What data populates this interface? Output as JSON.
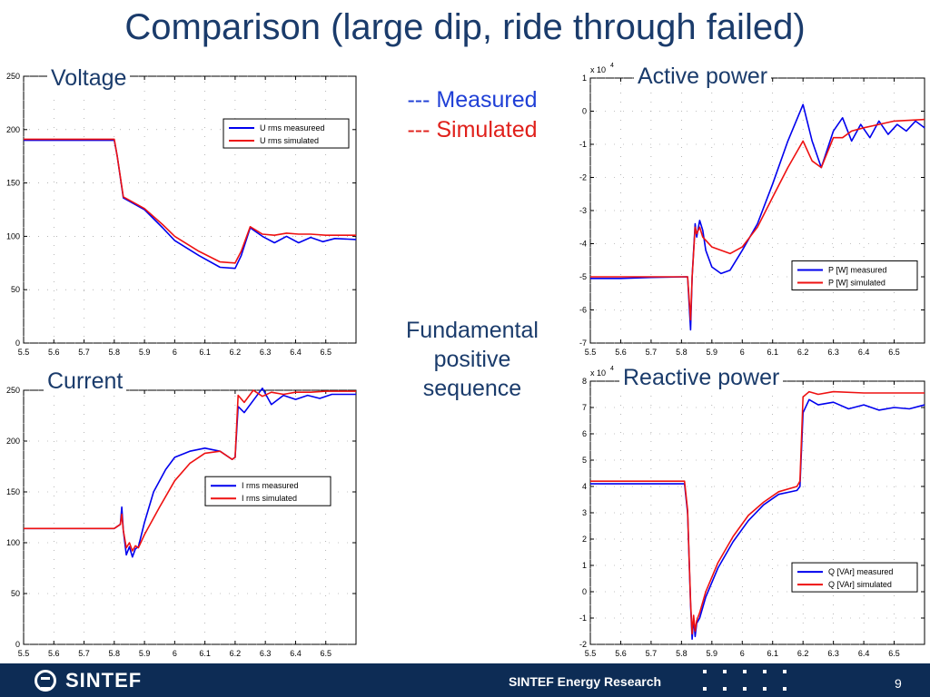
{
  "title": "Comparison (large dip, ride through failed)",
  "legend_text": {
    "measured": "--- Measured",
    "simulated": "--- Simulated"
  },
  "middle_label": [
    "Fundamental",
    "positive",
    "sequence"
  ],
  "footer": {
    "org": "SINTEF",
    "text": "SINTEF Energy Research",
    "page": "9"
  },
  "colors": {
    "measured": "#0000ee",
    "simulated": "#ee1111",
    "title": "#1a3b6b",
    "footer_bg": "#0d2c55"
  },
  "chart_data": [
    {
      "id": "voltage",
      "type": "line",
      "title": "Voltage",
      "xlim": [
        5.5,
        6.6
      ],
      "ylim": [
        0,
        250
      ],
      "xticks": [
        "5.5",
        "5.6",
        "5.7",
        "5.8",
        "5.9",
        "6",
        "6.1",
        "6.2",
        "6.3",
        "6.4",
        "6.5"
      ],
      "yticks": [
        "0",
        "50",
        "100",
        "150",
        "200",
        "250"
      ],
      "exponent": "",
      "legend_position": "top-right",
      "series": [
        {
          "name": "U rms measureed",
          "color": "measured",
          "x": [
            5.5,
            5.6,
            5.7,
            5.8,
            5.81,
            5.83,
            5.9,
            5.96,
            6.0,
            6.08,
            6.15,
            6.2,
            6.22,
            6.25,
            6.29,
            6.33,
            6.37,
            6.41,
            6.45,
            6.49,
            6.53,
            6.6
          ],
          "y": [
            190,
            190,
            190,
            190,
            175,
            136,
            125,
            108,
            96,
            82,
            71,
            70,
            82,
            108,
            100,
            94,
            100,
            94,
            99,
            95,
            98,
            97
          ]
        },
        {
          "name": "U rms simulated",
          "color": "simulated",
          "x": [
            5.5,
            5.6,
            5.7,
            5.8,
            5.81,
            5.83,
            5.9,
            5.96,
            6.0,
            6.08,
            6.15,
            6.2,
            6.22,
            6.25,
            6.29,
            6.33,
            6.37,
            6.41,
            6.45,
            6.5,
            6.6
          ],
          "y": [
            191,
            191,
            191,
            191,
            175,
            137,
            126,
            111,
            100,
            86,
            76,
            75,
            86,
            109,
            102,
            101,
            103,
            102,
            102,
            101,
            101
          ]
        }
      ]
    },
    {
      "id": "active",
      "type": "line",
      "title": "Active power",
      "xlim": [
        5.5,
        6.6
      ],
      "ylim": [
        -7,
        1
      ],
      "xticks": [
        "5.5",
        "5.6",
        "5.7",
        "5.8",
        "5.9",
        "6",
        "6.1",
        "6.2",
        "6.3",
        "6.4",
        "6.5"
      ],
      "yticks": [
        "-7",
        "-6",
        "-5",
        "-4",
        "-3",
        "-2",
        "-1",
        "0",
        "1"
      ],
      "exponent": "x 10",
      "exponent_power": "4",
      "legend_position": "bottom-right",
      "series": [
        {
          "name": "P [W] measured",
          "color": "measured",
          "x": [
            5.5,
            5.6,
            5.7,
            5.82,
            5.83,
            5.835,
            5.845,
            5.85,
            5.86,
            5.87,
            5.88,
            5.9,
            5.93,
            5.96,
            6.0,
            6.05,
            6.1,
            6.15,
            6.2,
            6.23,
            6.26,
            6.3,
            6.33,
            6.36,
            6.39,
            6.42,
            6.45,
            6.48,
            6.51,
            6.54,
            6.57,
            6.6
          ],
          "y": [
            -5.05,
            -5.05,
            -5.02,
            -5.0,
            -6.6,
            -5.0,
            -3.4,
            -3.8,
            -3.3,
            -3.6,
            -4.2,
            -4.7,
            -4.9,
            -4.8,
            -4.2,
            -3.4,
            -2.2,
            -0.9,
            0.2,
            -0.9,
            -1.7,
            -0.6,
            -0.2,
            -0.9,
            -0.4,
            -0.8,
            -0.3,
            -0.7,
            -0.4,
            -0.6,
            -0.3,
            -0.5
          ]
        },
        {
          "name": "P [W] simulated",
          "color": "simulated",
          "x": [
            5.5,
            5.6,
            5.7,
            5.82,
            5.83,
            5.835,
            5.845,
            5.85,
            5.86,
            5.87,
            5.88,
            5.9,
            5.96,
            6.0,
            6.05,
            6.1,
            6.15,
            6.2,
            6.23,
            6.26,
            6.3,
            6.33,
            6.36,
            6.4,
            6.45,
            6.5,
            6.6
          ],
          "y": [
            -5.0,
            -5.0,
            -5.0,
            -5.0,
            -6.3,
            -5.0,
            -3.5,
            -3.7,
            -3.5,
            -3.8,
            -3.9,
            -4.1,
            -4.3,
            -4.1,
            -3.5,
            -2.6,
            -1.7,
            -0.9,
            -1.5,
            -1.7,
            -0.8,
            -0.8,
            -0.6,
            -0.5,
            -0.4,
            -0.3,
            -0.25
          ]
        }
      ]
    },
    {
      "id": "current",
      "type": "line",
      "title": "Current",
      "xlim": [
        5.5,
        6.6
      ],
      "ylim": [
        0,
        250
      ],
      "xticks": [
        "5.5",
        "5.6",
        "5.7",
        "5.8",
        "5.9",
        "6",
        "6.1",
        "6.2",
        "6.3",
        "6.4",
        "6.5"
      ],
      "yticks": [
        "0",
        "50",
        "100",
        "150",
        "200",
        "250"
      ],
      "exponent": "",
      "legend_position": "middle-right",
      "series": [
        {
          "name": "I rms measured",
          "color": "measured",
          "x": [
            5.5,
            5.6,
            5.7,
            5.8,
            5.82,
            5.825,
            5.83,
            5.84,
            5.85,
            5.86,
            5.87,
            5.88,
            5.9,
            5.93,
            5.97,
            6.0,
            6.05,
            6.1,
            6.15,
            6.19,
            6.2,
            6.21,
            6.23,
            6.26,
            6.29,
            6.32,
            6.36,
            6.4,
            6.44,
            6.48,
            6.52,
            6.6
          ],
          "y": [
            114,
            114,
            114,
            114,
            118,
            135,
            112,
            88,
            96,
            86,
            94,
            96,
            120,
            150,
            172,
            184,
            190,
            193,
            190,
            182,
            184,
            234,
            228,
            240,
            252,
            236,
            245,
            241,
            245,
            242,
            246,
            246
          ]
        },
        {
          "name": "I rms simulated",
          "color": "simulated",
          "x": [
            5.5,
            5.6,
            5.7,
            5.8,
            5.82,
            5.825,
            5.83,
            5.84,
            5.85,
            5.86,
            5.87,
            5.88,
            5.9,
            5.95,
            6.0,
            6.05,
            6.1,
            6.15,
            6.19,
            6.2,
            6.21,
            6.23,
            6.26,
            6.29,
            6.32,
            6.36,
            6.4,
            6.45,
            6.5,
            6.6
          ],
          "y": [
            114,
            114,
            114,
            114,
            118,
            128,
            112,
            95,
            100,
            92,
            97,
            95,
            108,
            135,
            161,
            178,
            188,
            190,
            182,
            184,
            245,
            238,
            250,
            244,
            248,
            246,
            248,
            248,
            249,
            249
          ]
        }
      ]
    },
    {
      "id": "reactive",
      "type": "line",
      "title": "Reactive power",
      "xlim": [
        5.5,
        6.6
      ],
      "ylim": [
        -2,
        8
      ],
      "xticks": [
        "5.5",
        "5.6",
        "5.7",
        "5.8",
        "5.9",
        "6",
        "6.1",
        "6.2",
        "6.3",
        "6.4",
        "6.5"
      ],
      "yticks": [
        "-2",
        "-1",
        "0",
        "1",
        "2",
        "3",
        "4",
        "5",
        "6",
        "7",
        "8"
      ],
      "exponent": "x 10",
      "exponent_power": "4",
      "legend_position": "bottom-right",
      "series": [
        {
          "name": "Q [VAr] measured",
          "color": "measured",
          "x": [
            5.5,
            5.6,
            5.7,
            5.81,
            5.82,
            5.83,
            5.835,
            5.84,
            5.845,
            5.85,
            5.86,
            5.88,
            5.92,
            5.97,
            6.02,
            6.07,
            6.12,
            6.18,
            6.19,
            6.2,
            6.22,
            6.25,
            6.3,
            6.35,
            6.4,
            6.45,
            6.5,
            6.55,
            6.6
          ],
          "y": [
            4.1,
            4.1,
            4.1,
            4.1,
            3.0,
            -0.5,
            -1.8,
            -1.0,
            -1.7,
            -1.2,
            -1.0,
            -0.2,
            0.9,
            1.9,
            2.7,
            3.3,
            3.7,
            3.85,
            4.0,
            6.8,
            7.3,
            7.1,
            7.2,
            6.95,
            7.1,
            6.9,
            7.0,
            6.95,
            7.1
          ]
        },
        {
          "name": "Q [VAr] simulated",
          "color": "simulated",
          "x": [
            5.5,
            5.6,
            5.7,
            5.81,
            5.82,
            5.83,
            5.835,
            5.84,
            5.845,
            5.85,
            5.86,
            5.88,
            5.92,
            5.97,
            6.02,
            6.07,
            6.12,
            6.18,
            6.19,
            6.2,
            6.22,
            6.25,
            6.3,
            6.4,
            6.5,
            6.6
          ],
          "y": [
            4.2,
            4.2,
            4.2,
            4.2,
            3.1,
            -0.4,
            -1.6,
            -0.9,
            -1.5,
            -1.1,
            -0.8,
            0.0,
            1.1,
            2.1,
            2.9,
            3.4,
            3.8,
            4.0,
            4.2,
            7.4,
            7.6,
            7.5,
            7.6,
            7.55,
            7.55,
            7.55
          ]
        }
      ]
    }
  ]
}
